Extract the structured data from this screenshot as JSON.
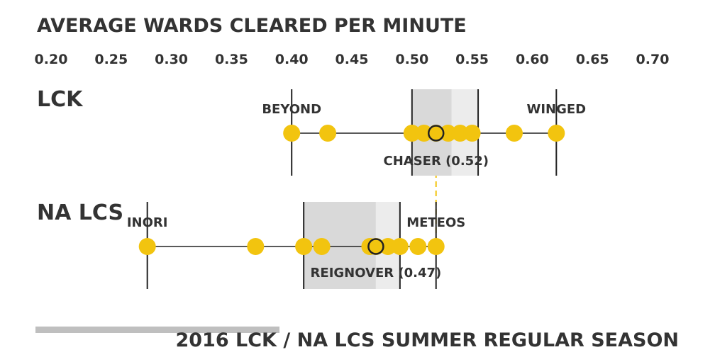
{
  "chart_data": {
    "type": "scatter",
    "title": "AVERAGE WARDS CLEARED PER MINUTE",
    "subtitle": "2016 LCK / NA LCS SUMMER REGULAR SEASON",
    "x_ticks": [
      "0.20",
      "0.25",
      "0.30",
      "0.35",
      "0.40",
      "0.45",
      "0.50",
      "0.55",
      "0.60",
      "0.65",
      "0.70"
    ],
    "xlim": [
      0.2,
      0.7
    ],
    "colors": {
      "point": "#f2c40f",
      "text": "#333333",
      "line": "#222222",
      "box_dark": "#d9d9d9",
      "box_light": "#ececec",
      "mean_line": "#f2c40f",
      "footer_bar": "#bfbfbf"
    },
    "leagues": [
      {
        "name": "LCK",
        "min": 0.4,
        "max": 0.62,
        "q1": 0.5,
        "median": 0.533,
        "q3": 0.555,
        "points": [
          0.4,
          0.43,
          0.5,
          0.51,
          0.52,
          0.53,
          0.54,
          0.55,
          0.585,
          0.62
        ],
        "highlight": {
          "name": "CHASER (0.52)",
          "value": 0.52
        },
        "min_label": "BEYOND",
        "max_label": "WINGED"
      },
      {
        "name": "NA LCS",
        "min": 0.28,
        "max": 0.52,
        "q1": 0.41,
        "median": 0.47,
        "q3": 0.49,
        "points": [
          0.28,
          0.37,
          0.41,
          0.425,
          0.465,
          0.47,
          0.48,
          0.49,
          0.505,
          0.52
        ],
        "highlight": {
          "name": "REIGNOVER (0.47)",
          "value": 0.47
        },
        "min_label": "INORI",
        "max_label": "METEOS"
      }
    ]
  }
}
